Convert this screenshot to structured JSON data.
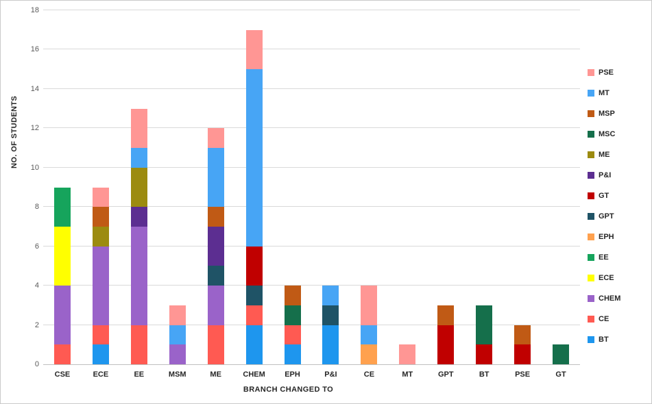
{
  "axes": {
    "y_title": "NO. OF STUDENTS",
    "x_title": "BRANCH CHANGED TO"
  },
  "chart_data": {
    "type": "bar",
    "stacked": true,
    "title": "",
    "xlabel": "BRANCH CHANGED TO",
    "ylabel": "NO. OF STUDENTS",
    "ylim": [
      0,
      18
    ],
    "ytick_step": 2,
    "grid": true,
    "legend_position": "right",
    "legend_order_top_to_bottom": [
      "PSE",
      "MT",
      "MSP",
      "MSC",
      "ME",
      "P&I",
      "GT",
      "GPT",
      "EPH",
      "EE",
      "ECE",
      "CHEM",
      "CE",
      "BT"
    ],
    "categories": [
      "CSE",
      "ECE",
      "EE",
      "MSM",
      "ME",
      "CHEM",
      "EPH",
      "P&I",
      "CE",
      "MT",
      "GPT",
      "BT",
      "PSE",
      "GT"
    ],
    "series": [
      {
        "name": "BT",
        "color": "#1e96ee",
        "values": [
          0,
          1,
          0,
          0,
          0,
          2,
          1,
          2,
          0,
          0,
          0,
          0,
          0,
          0
        ]
      },
      {
        "name": "CE",
        "color": "#ff5a52",
        "values": [
          1,
          1,
          2,
          0,
          2,
          1,
          1,
          0,
          0,
          0,
          0,
          0,
          0,
          0
        ]
      },
      {
        "name": "CHEM",
        "color": "#9a63c9",
        "values": [
          3,
          4,
          5,
          1,
          2,
          0,
          0,
          0,
          0,
          0,
          0,
          0,
          0,
          0
        ]
      },
      {
        "name": "ECE",
        "color": "#ffff00",
        "values": [
          3,
          0,
          0,
          0,
          0,
          0,
          0,
          0,
          0,
          0,
          0,
          0,
          0,
          0
        ]
      },
      {
        "name": "EE",
        "color": "#16a45c",
        "values": [
          2,
          0,
          0,
          0,
          0,
          0,
          0,
          0,
          0,
          0,
          0,
          0,
          0,
          0
        ]
      },
      {
        "name": "EPH",
        "color": "#ffa14e",
        "values": [
          0,
          0,
          0,
          0,
          0,
          0,
          0,
          0,
          1,
          0,
          0,
          0,
          0,
          0
        ]
      },
      {
        "name": "GPT",
        "color": "#1f5366",
        "values": [
          0,
          0,
          0,
          0,
          1,
          1,
          0,
          1,
          0,
          0,
          0,
          0,
          0,
          0
        ]
      },
      {
        "name": "GT",
        "color": "#c00000",
        "values": [
          0,
          0,
          0,
          0,
          0,
          2,
          0,
          0,
          0,
          0,
          2,
          1,
          1,
          0
        ]
      },
      {
        "name": "P&I",
        "color": "#5c2e91",
        "values": [
          0,
          0,
          1,
          0,
          2,
          0,
          0,
          0,
          0,
          0,
          0,
          0,
          0,
          0
        ]
      },
      {
        "name": "ME",
        "color": "#9c8b10",
        "values": [
          0,
          1,
          2,
          0,
          0,
          0,
          0,
          0,
          0,
          0,
          0,
          0,
          0,
          0
        ]
      },
      {
        "name": "MSC",
        "color": "#156f4b",
        "values": [
          0,
          0,
          0,
          0,
          0,
          0,
          1,
          0,
          0,
          0,
          0,
          2,
          0,
          1
        ]
      },
      {
        "name": "MSP",
        "color": "#c05a15",
        "values": [
          0,
          1,
          0,
          0,
          1,
          0,
          1,
          0,
          0,
          0,
          1,
          0,
          1,
          0
        ]
      },
      {
        "name": "MT",
        "color": "#47a5f5",
        "values": [
          0,
          0,
          1,
          1,
          3,
          9,
          0,
          1,
          1,
          0,
          0,
          0,
          0,
          0
        ]
      },
      {
        "name": "PSE",
        "color": "#ff9694",
        "values": [
          0,
          1,
          2,
          1,
          1,
          2,
          0,
          0,
          2,
          1,
          0,
          0,
          0,
          0
        ]
      }
    ]
  }
}
